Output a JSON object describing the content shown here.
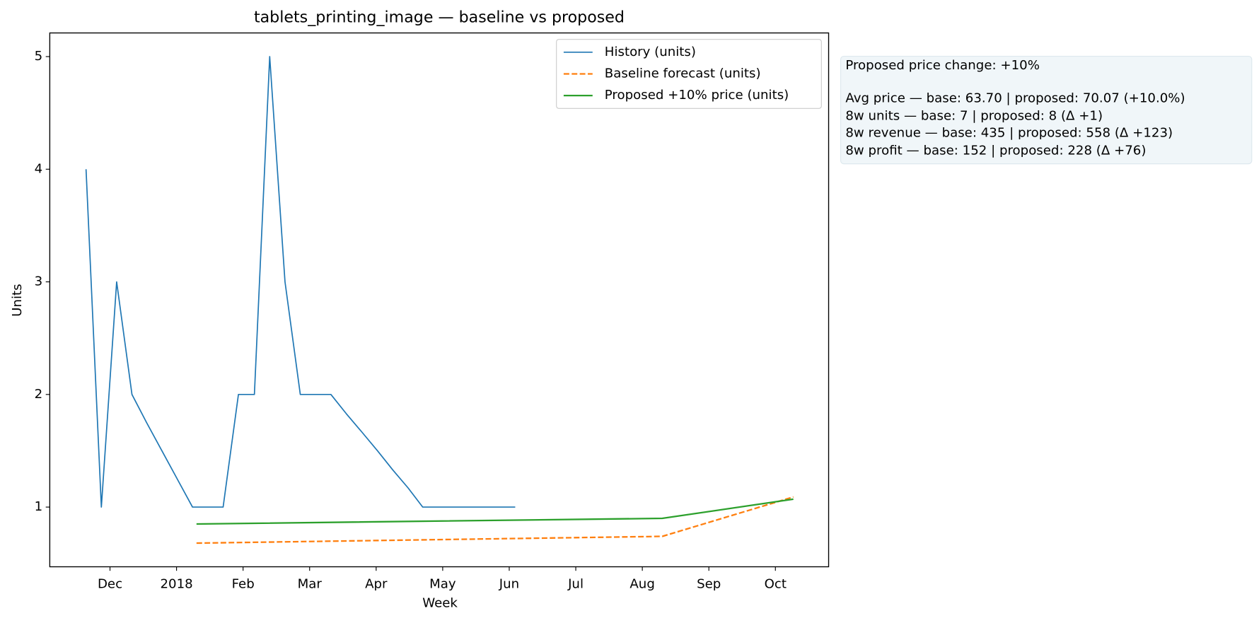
{
  "chart_data": {
    "type": "line",
    "title": "tablets_printing_image — baseline vs proposed",
    "x_label": "Week",
    "y_label": "Units",
    "xlim": [
      -0.905,
      10.8
    ],
    "ylim": [
      0.47,
      5.21
    ],
    "xticks": [
      {
        "value": 0,
        "label": "Dec"
      },
      {
        "value": 1,
        "label": "2018"
      },
      {
        "value": 2,
        "label": "Feb"
      },
      {
        "value": 3,
        "label": "Mar"
      },
      {
        "value": 4,
        "label": "Apr"
      },
      {
        "value": 5,
        "label": "May"
      },
      {
        "value": 6,
        "label": "Jun"
      },
      {
        "value": 7,
        "label": "Jul"
      },
      {
        "value": 8,
        "label": "Aug"
      },
      {
        "value": 9,
        "label": "Sep"
      },
      {
        "value": 10,
        "label": "Oct"
      }
    ],
    "yticks": [
      1,
      2,
      3,
      4,
      5
    ],
    "grid": false,
    "legend": "upper right",
    "series": [
      {
        "name": "History (units)",
        "color": "#1f77b4",
        "dash": "solid",
        "width": 1.5,
        "x": [
          -0.36,
          -0.13,
          0.1,
          0.33,
          0.55,
          0.78,
          1.01,
          1.24,
          1.47,
          1.7,
          1.93,
          2.17,
          2.4,
          2.63,
          2.86,
          3.09,
          3.32,
          3.55,
          3.78,
          4.02,
          4.25,
          4.48,
          4.7,
          4.93,
          5.16,
          5.39,
          5.63,
          5.86,
          6.09
        ],
        "values": [
          4,
          1,
          3,
          2,
          1.75,
          1.5,
          1.25,
          1,
          1,
          1,
          2,
          2,
          5,
          3,
          2,
          2,
          2,
          1.83,
          1.67,
          1.5,
          1.33,
          1.17,
          1,
          1,
          1,
          1,
          1,
          1,
          1
        ]
      },
      {
        "name": "Baseline forecast (units)",
        "color": "#ff7f0e",
        "dash": "dashed",
        "width": 2,
        "x": [
          1.3,
          8.3,
          10.27
        ],
        "values": [
          0.68,
          0.74,
          1.09
        ]
      },
      {
        "name": "Proposed +10% price (units)",
        "color": "#2ca02c",
        "dash": "solid",
        "width": 2,
        "x": [
          1.3,
          8.3,
          10.27
        ],
        "values": [
          0.85,
          0.9,
          1.07
        ]
      }
    ],
    "summary_box": [
      "Proposed price change: +10%",
      "Avg price — base: 63.70  |  proposed: 70.07  (+10.0%)",
      "8w units — base: 7  |  proposed: 8  (Δ +1)",
      "8w revenue — base: 435  |  proposed: 558  (Δ +123)",
      "8w profit — base: 152  |  proposed: 228  (Δ +76)"
    ]
  }
}
